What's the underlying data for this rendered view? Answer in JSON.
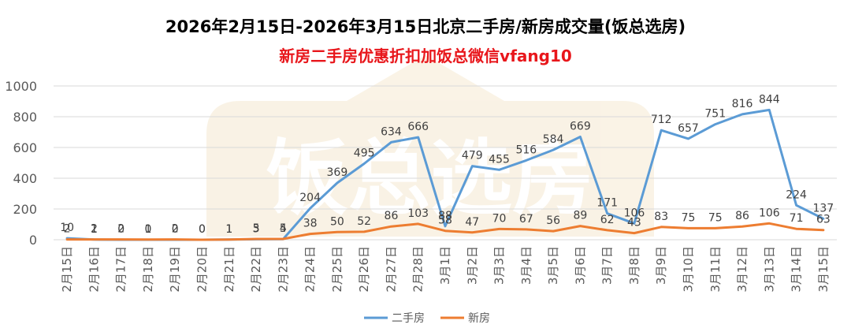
{
  "chart_data": {
    "type": "line",
    "title": "2026年2月15日-2026年3月15日北京二手房/新房成交量(饭总选房)",
    "subtitle": "新房二手房优惠折扣加饭总微信vfang10",
    "watermark": "饭总选房",
    "categories": [
      "2月15日",
      "2月16日",
      "2月17日",
      "2月18日",
      "2月19日",
      "2月20日",
      "2月21日",
      "2月22日",
      "2月23日",
      "2月24日",
      "2月25日",
      "2月26日",
      "2月27日",
      "2月28日",
      "3月1日",
      "3月2日",
      "3月3日",
      "3月4日",
      "3月5日",
      "3月6日",
      "3月7日",
      "3月8日",
      "3月9日",
      "3月10日",
      "3月11日",
      "3月12日",
      "3月13日",
      "3月14日",
      "3月15日"
    ],
    "yticks": [
      "0",
      "200",
      "400",
      "600",
      "800",
      "1000"
    ],
    "ylim": [
      0,
      1000
    ],
    "grid": true,
    "legend_position": "bottom",
    "series": [
      {
        "name": "二手房",
        "color": "#5b9bd5",
        "values": [
          10,
          1,
          0,
          0,
          0,
          0,
          1,
          3,
          4,
          204,
          369,
          495,
          634,
          666,
          88,
          479,
          455,
          516,
          584,
          669,
          171,
          106,
          712,
          657,
          751,
          816,
          844,
          224,
          137
        ]
      },
      {
        "name": "新房",
        "color": "#ed7d31",
        "values": [
          2,
          2,
          2,
          1,
          2,
          0,
          1,
          5,
          5,
          38,
          50,
          52,
          86,
          103,
          58,
          47,
          70,
          67,
          56,
          89,
          62,
          43,
          83,
          75,
          75,
          86,
          106,
          71,
          63
        ]
      }
    ]
  }
}
